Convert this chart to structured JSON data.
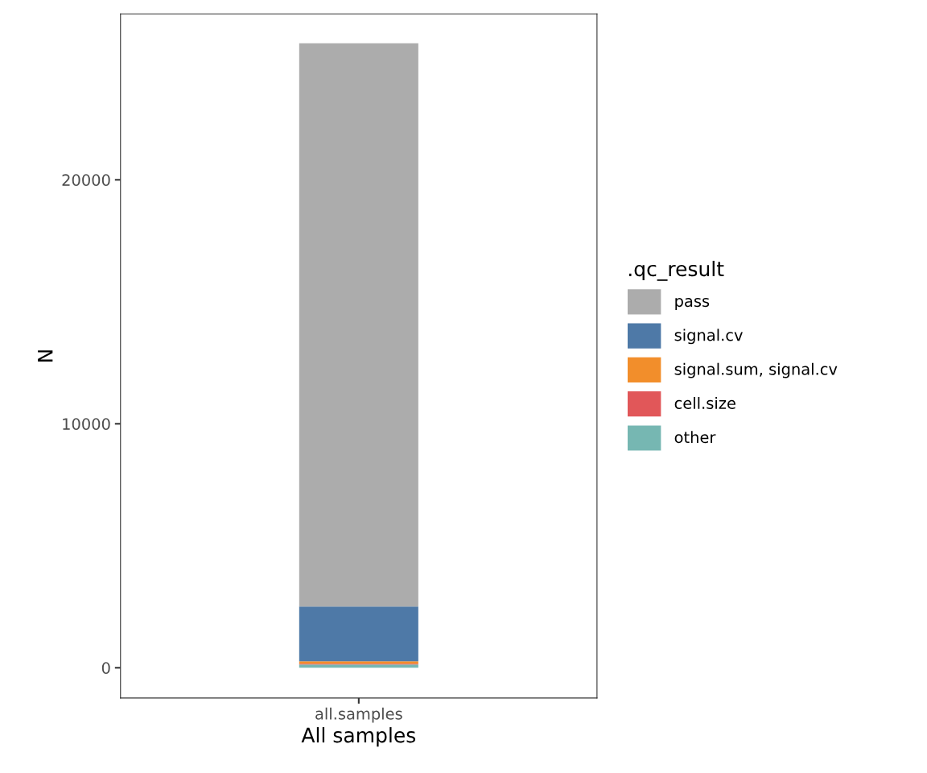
{
  "chart_data": {
    "type": "bar",
    "stacked": true,
    "categories": [
      "all.samples"
    ],
    "xlabel": "All samples",
    "ylabel": "N",
    "legend_title": ".qc_result",
    "legend": "right",
    "grid": false,
    "ylim": [
      -1240,
      26800
    ],
    "yticks": [
      0,
      10000,
      20000
    ],
    "series": [
      {
        "name": "other",
        "color": "#76b7b2",
        "values": [
          130
        ]
      },
      {
        "name": "cell.size",
        "color": "#e15759",
        "values": [
          35
        ]
      },
      {
        "name": "signal.sum, signal.cv",
        "color": "#f28e2b",
        "values": [
          100
        ]
      },
      {
        "name": "signal.cv",
        "color": "#4e79a7",
        "values": [
          2245
        ]
      },
      {
        "name": "pass",
        "color": "#acacac",
        "values": [
          23090
        ]
      }
    ]
  }
}
